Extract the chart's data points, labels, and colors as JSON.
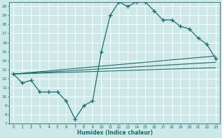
{
  "background_color": "#cde8e8",
  "grid_color": "#ffffff",
  "line_color": "#1a6b6b",
  "xlabel": "Humidex (Indice chaleur)",
  "xlim": [
    -0.5,
    23.5
  ],
  "ylim": [
    7,
    20.5
  ],
  "xticks": [
    0,
    1,
    2,
    3,
    4,
    5,
    6,
    7,
    8,
    9,
    10,
    11,
    12,
    13,
    14,
    15,
    16,
    17,
    18,
    19,
    20,
    21,
    22,
    23
  ],
  "yticks": [
    7,
    8,
    9,
    10,
    11,
    12,
    13,
    14,
    15,
    16,
    17,
    18,
    19,
    20
  ],
  "line1_x": [
    0,
    1,
    2,
    3,
    4,
    5,
    6,
    7,
    8,
    9,
    10,
    11,
    12,
    13,
    14,
    15,
    16,
    17,
    18,
    19,
    20,
    21,
    22,
    23
  ],
  "line1_y": [
    12.5,
    11.5,
    11.8,
    10.5,
    10.5,
    10.5,
    9.5,
    7.5,
    9.0,
    9.5,
    15.0,
    19.0,
    20.5,
    20.0,
    20.5,
    20.5,
    19.5,
    18.5,
    18.5,
    17.8,
    17.5,
    16.5,
    15.8,
    14.2
  ],
  "line2_x": [
    0,
    23
  ],
  "line2_y": [
    12.5,
    13.2
  ],
  "line3_x": [
    0,
    23
  ],
  "line3_y": [
    12.5,
    13.8
  ],
  "line4_x": [
    0,
    23
  ],
  "line4_y": [
    12.5,
    14.5
  ]
}
